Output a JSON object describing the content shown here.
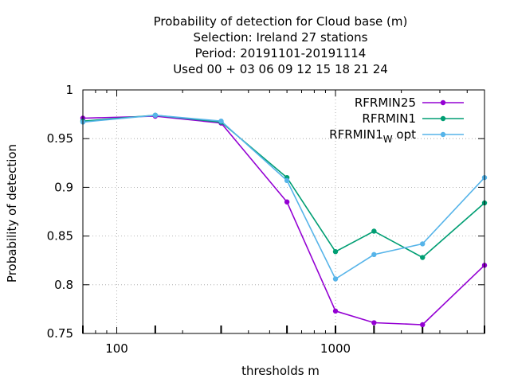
{
  "chart_data": {
    "type": "line",
    "title_lines": [
      "Probability of detection  for Cloud base (m)",
      "Selection: Ireland     27 stations",
      "Period: 20191101-20191114",
      "Used  00 + 03 06 09 12 15 18 21 24"
    ],
    "xlabel": "thresholds m",
    "ylabel": "Probability of detection",
    "xscale": "log",
    "xlim": [
      70,
      4800
    ],
    "ylim": [
      0.75,
      1.0
    ],
    "xticks": [
      100,
      1000
    ],
    "xtick_labels": [
      "100",
      "1000"
    ],
    "yticks": [
      0.75,
      0.8,
      0.85,
      0.9,
      0.95,
      1.0
    ],
    "ytick_labels": [
      "0.75",
      "0.8",
      "0.85",
      "0.9",
      "0.95",
      "1"
    ],
    "grid": true,
    "legend_position": "top-right",
    "x": [
      70,
      150,
      300,
      600,
      1000,
      1500,
      2500,
      4800
    ],
    "series": [
      {
        "name": "RFRMIN25",
        "color": "#9400d3",
        "values": [
          0.971,
          0.973,
          0.966,
          0.885,
          0.773,
          0.761,
          0.759,
          0.82
        ]
      },
      {
        "name": "RFRMIN1",
        "color": "#009e73",
        "values": [
          0.968,
          0.974,
          0.967,
          0.91,
          0.834,
          0.855,
          0.828,
          0.884
        ]
      },
      {
        "name": "RFRMIN1",
        "name_subscript": "W",
        "name_suffix": "opt",
        "color": "#56b4e9",
        "values": [
          0.967,
          0.974,
          0.968,
          0.907,
          0.806,
          0.831,
          0.842,
          0.91
        ]
      }
    ]
  }
}
